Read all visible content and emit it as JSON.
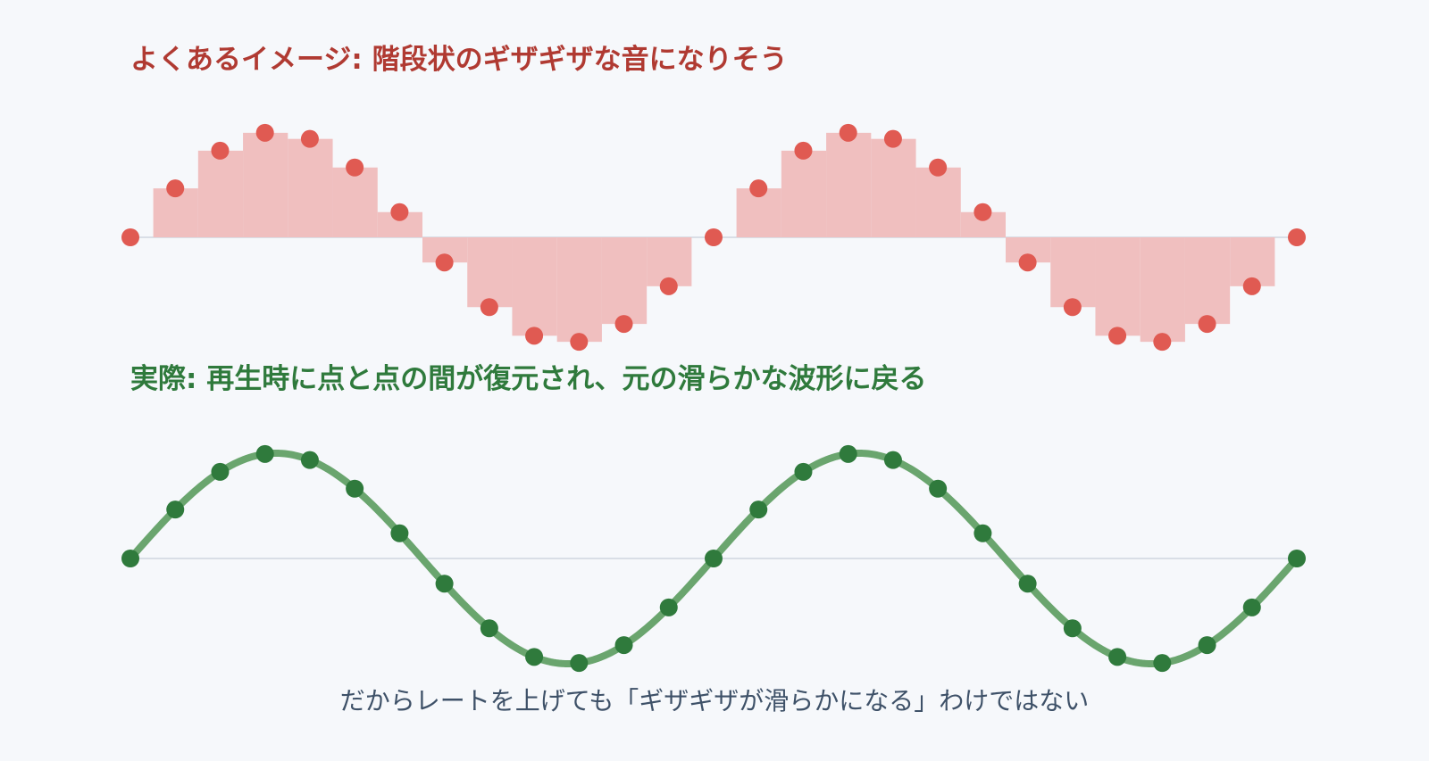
{
  "titles": {
    "stepped": "よくあるイメージ: 階段状のギザギザな音になりそう",
    "smooth": "実際: 再生時に点と点の間が復元され、元の滑らかな波形に戻る"
  },
  "caption": "だからレートを上げても「ギザギザが滑らかになる」わけではない",
  "colors": {
    "background": "#f6f8fb",
    "stepped_fill": "#f0bfbf",
    "stepped_point": "#e05a52",
    "stepped_title": "#b03a32",
    "smooth_line": "#6aa56e",
    "smooth_point": "#2f7a3c",
    "smooth_title": "#2f7a3c",
    "baseline": "#d9dee6",
    "caption": "#3e5168"
  },
  "waveform": {
    "cycles": 2,
    "samples_per_cycle": 13,
    "sample_count": 27
  }
}
